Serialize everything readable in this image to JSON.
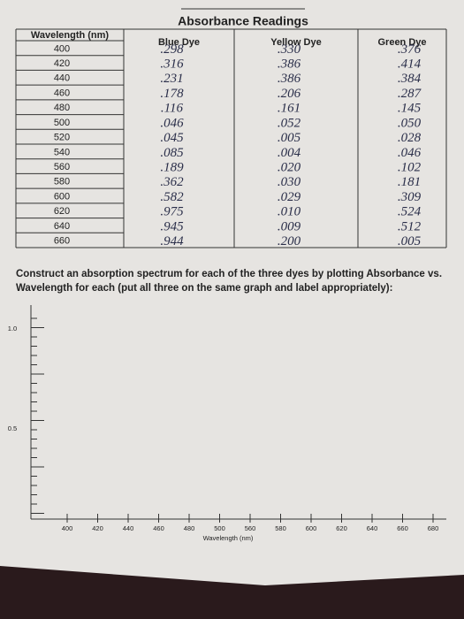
{
  "title": "Absorbance Readings",
  "table": {
    "header": [
      "Wavelength (nm)",
      "Blue Dye",
      "Yellow Dye",
      "Green Dye"
    ],
    "rows": [
      [
        "400",
        ".298",
        ".330",
        ".376"
      ],
      [
        "420",
        ".316",
        ".386",
        ".414"
      ],
      [
        "440",
        ".231",
        ".386",
        ".384"
      ],
      [
        "460",
        ".178",
        ".206",
        ".287"
      ],
      [
        "480",
        ".116",
        ".161",
        ".145"
      ],
      [
        "500",
        ".046",
        ".052",
        ".050"
      ],
      [
        "520",
        ".045",
        ".005",
        ".028"
      ],
      [
        "540",
        ".085",
        ".004",
        ".046"
      ],
      [
        "560",
        ".189",
        ".020",
        ".102"
      ],
      [
        "580",
        ".362",
        ".030",
        ".181"
      ],
      [
        "600",
        ".582",
        ".029",
        ".309"
      ],
      [
        "620",
        ".975",
        ".010",
        ".524"
      ],
      [
        "640",
        ".945",
        ".009",
        ".512"
      ],
      [
        "660",
        ".944",
        ".200",
        ".005"
      ]
    ]
  },
  "instructions": "Construct an absorption spectrum for each of the three dyes by plotting Absorbance vs. Wavelength for each (put all three on the same graph and label appropriately):",
  "graph": {
    "y_labels": [
      "1.0",
      "0.5"
    ],
    "x_labels": [
      "400",
      "420",
      "440",
      "460",
      "480",
      "500",
      "560",
      "580",
      "600",
      "620",
      "640",
      "660",
      "680"
    ],
    "x_title": "Wavelength (nm)"
  }
}
